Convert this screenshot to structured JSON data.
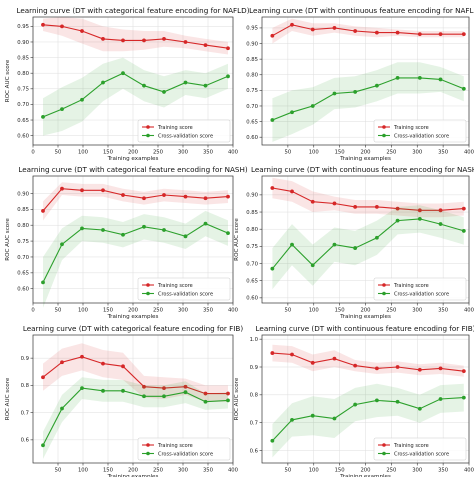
{
  "chart_data": [
    {
      "type": "line",
      "title": "Learning curve (DT with categorical feature encoding for NAFLD)",
      "xlabel": "Training examples",
      "ylabel": "ROC AUC score",
      "xlim": [
        0,
        400
      ],
      "ylim": [
        0.57,
        0.98
      ],
      "xticks": [
        0,
        50,
        100,
        150,
        200,
        250,
        300,
        350,
        400
      ],
      "yticks": [
        0.6,
        0.65,
        0.7,
        0.75,
        0.8,
        0.85,
        0.9,
        0.95
      ],
      "ytick_labels": [
        "0.60",
        "0.65",
        "0.70",
        "0.75",
        "0.80",
        "0.85",
        "0.90",
        "0.95"
      ],
      "x": [
        20,
        58,
        98,
        140,
        180,
        222,
        262,
        305,
        345,
        390
      ],
      "series": [
        {
          "name": "Training score",
          "color": "#d62728",
          "values": [
            0.955,
            0.95,
            0.935,
            0.91,
            0.905,
            0.905,
            0.91,
            0.9,
            0.89,
            0.88
          ],
          "band": [
            0.02,
            0.03,
            0.04,
            0.04,
            0.035,
            0.03,
            0.025,
            0.02,
            0.02,
            0.02
          ]
        },
        {
          "name": "Cross-validation score",
          "color": "#2ca02c",
          "values": [
            0.66,
            0.685,
            0.715,
            0.77,
            0.8,
            0.76,
            0.74,
            0.77,
            0.76,
            0.79
          ],
          "band": [
            0.06,
            0.07,
            0.07,
            0.06,
            0.05,
            0.05,
            0.05,
            0.04,
            0.04,
            0.04
          ]
        }
      ],
      "legend": "bottom-right"
    },
    {
      "type": "line",
      "title": "Learning curve (DT with continuous feature encoding for NAFLD)",
      "xlabel": "Training examples",
      "ylabel": "",
      "xlim": [
        0,
        400
      ],
      "ylim": [
        0.575,
        0.985
      ],
      "xticks": [
        50,
        100,
        150,
        200,
        250,
        300,
        350,
        400
      ],
      "yticks": [
        0.6,
        0.65,
        0.7,
        0.75,
        0.8,
        0.85,
        0.9,
        0.95
      ],
      "ytick_labels": [
        "0.60",
        "0.65",
        "0.70",
        "0.75",
        "0.80",
        "0.85",
        "0.90",
        "0.95"
      ],
      "x": [
        20,
        58,
        98,
        140,
        180,
        222,
        262,
        305,
        345,
        390
      ],
      "series": [
        {
          "name": "Training score",
          "color": "#d62728",
          "values": [
            0.925,
            0.96,
            0.945,
            0.95,
            0.94,
            0.935,
            0.935,
            0.93,
            0.93,
            0.93
          ],
          "band": [
            0.025,
            0.02,
            0.02,
            0.015,
            0.015,
            0.015,
            0.01,
            0.01,
            0.01,
            0.01
          ]
        },
        {
          "name": "Cross-validation score",
          "color": "#2ca02c",
          "values": [
            0.655,
            0.68,
            0.7,
            0.74,
            0.745,
            0.765,
            0.79,
            0.79,
            0.785,
            0.755
          ],
          "band": [
            0.07,
            0.07,
            0.06,
            0.05,
            0.05,
            0.05,
            0.05,
            0.05,
            0.04,
            0.04
          ]
        }
      ],
      "legend": "bottom-right"
    },
    {
      "type": "line",
      "title": "Learning curve (DT with categorical feature encoding for NASH)",
      "xlabel": "Training examples",
      "ylabel": "ROC AUC score",
      "xlim": [
        0,
        400
      ],
      "ylim": [
        0.555,
        0.955
      ],
      "xticks": [
        0,
        50,
        100,
        150,
        200,
        250,
        300,
        350,
        400
      ],
      "yticks": [
        0.6,
        0.65,
        0.7,
        0.75,
        0.8,
        0.85,
        0.9
      ],
      "ytick_labels": [
        "0.60",
        "0.65",
        "0.70",
        "0.75",
        "0.80",
        "0.85",
        "0.90"
      ],
      "x": [
        20,
        58,
        98,
        140,
        180,
        222,
        262,
        305,
        345,
        390
      ],
      "series": [
        {
          "name": "Training score",
          "color": "#d62728",
          "values": [
            0.845,
            0.915,
            0.91,
            0.91,
            0.895,
            0.885,
            0.895,
            0.89,
            0.885,
            0.89
          ],
          "band": [
            0.03,
            0.02,
            0.02,
            0.02,
            0.02,
            0.02,
            0.02,
            0.02,
            0.02,
            0.02
          ]
        },
        {
          "name": "Cross-validation score",
          "color": "#2ca02c",
          "values": [
            0.62,
            0.74,
            0.79,
            0.785,
            0.77,
            0.795,
            0.785,
            0.765,
            0.805,
            0.775
          ],
          "band": [
            0.08,
            0.05,
            0.04,
            0.04,
            0.04,
            0.04,
            0.04,
            0.04,
            0.04,
            0.04
          ]
        }
      ],
      "legend": "bottom-right"
    },
    {
      "type": "line",
      "title": "Learning curve (DT with continuous feature encoding for NASH)",
      "xlabel": "Training examples",
      "ylabel": "ROC AUC score",
      "xlim": [
        0,
        400
      ],
      "ylim": [
        0.585,
        0.955
      ],
      "xticks": [
        50,
        100,
        150,
        200,
        250,
        300,
        350,
        400
      ],
      "yticks": [
        0.6,
        0.65,
        0.7,
        0.75,
        0.8,
        0.85,
        0.9
      ],
      "ytick_labels": [
        "0.60",
        "0.65",
        "0.70",
        "0.75",
        "0.80",
        "0.85",
        "0.90"
      ],
      "x": [
        20,
        58,
        98,
        140,
        180,
        222,
        262,
        305,
        345,
        390
      ],
      "series": [
        {
          "name": "Training score",
          "color": "#d62728",
          "values": [
            0.92,
            0.91,
            0.88,
            0.875,
            0.865,
            0.865,
            0.86,
            0.855,
            0.855,
            0.86
          ],
          "band": [
            0.03,
            0.03,
            0.03,
            0.02,
            0.02,
            0.02,
            0.02,
            0.02,
            0.02,
            0.02
          ]
        },
        {
          "name": "Cross-validation score",
          "color": "#2ca02c",
          "values": [
            0.685,
            0.755,
            0.695,
            0.755,
            0.745,
            0.775,
            0.825,
            0.83,
            0.815,
            0.795
          ],
          "band": [
            0.06,
            0.06,
            0.06,
            0.05,
            0.05,
            0.05,
            0.04,
            0.04,
            0.04,
            0.04
          ]
        }
      ],
      "legend": "bottom-right"
    },
    {
      "type": "line",
      "title": "Learning curve (DT with categorical feature encoding for FIB)",
      "xlabel": "Training examples",
      "ylabel": "ROC AUC score",
      "xlim": [
        0,
        400
      ],
      "ylim": [
        0.515,
        0.985
      ],
      "xticks": [
        50,
        100,
        150,
        200,
        250,
        300,
        350,
        400
      ],
      "yticks": [
        0.6,
        0.7,
        0.8,
        0.9
      ],
      "ytick_labels": [
        "0.6",
        "0.7",
        "0.8",
        "0.9"
      ],
      "x": [
        20,
        58,
        98,
        140,
        180,
        222,
        262,
        305,
        345,
        390
      ],
      "series": [
        {
          "name": "Training score",
          "color": "#d62728",
          "values": [
            0.83,
            0.885,
            0.905,
            0.88,
            0.87,
            0.795,
            0.79,
            0.795,
            0.77,
            0.77
          ],
          "band": [
            0.05,
            0.05,
            0.05,
            0.05,
            0.05,
            0.04,
            0.04,
            0.03,
            0.03,
            0.03
          ]
        },
        {
          "name": "Cross-validation score",
          "color": "#2ca02c",
          "values": [
            0.58,
            0.715,
            0.79,
            0.78,
            0.78,
            0.76,
            0.76,
            0.775,
            0.74,
            0.745
          ],
          "band": [
            0.05,
            0.05,
            0.04,
            0.04,
            0.04,
            0.04,
            0.04,
            0.04,
            0.03,
            0.03
          ]
        }
      ],
      "legend": "bottom-right"
    },
    {
      "type": "line",
      "title": "Learning curve (DT with continuous feature encoding for FIB)",
      "xlabel": "Training examples",
      "ylabel": "ROC AUC score",
      "xlim": [
        0,
        400
      ],
      "ylim": [
        0.555,
        1.015
      ],
      "xticks": [
        50,
        100,
        150,
        200,
        250,
        300,
        350,
        400
      ],
      "yticks": [
        0.6,
        0.7,
        0.8,
        0.9,
        1.0
      ],
      "ytick_labels": [
        "0.6",
        "0.7",
        "0.8",
        "0.9",
        "1.0"
      ],
      "x": [
        20,
        58,
        98,
        140,
        180,
        222,
        262,
        305,
        345,
        390
      ],
      "series": [
        {
          "name": "Training score",
          "color": "#d62728",
          "values": [
            0.95,
            0.945,
            0.915,
            0.93,
            0.905,
            0.895,
            0.9,
            0.89,
            0.895,
            0.885
          ],
          "band": [
            0.03,
            0.03,
            0.03,
            0.03,
            0.02,
            0.02,
            0.02,
            0.02,
            0.02,
            0.02
          ]
        },
        {
          "name": "Cross-validation score",
          "color": "#2ca02c",
          "values": [
            0.635,
            0.71,
            0.725,
            0.715,
            0.765,
            0.78,
            0.775,
            0.75,
            0.785,
            0.79
          ],
          "band": [
            0.06,
            0.06,
            0.07,
            0.07,
            0.06,
            0.06,
            0.05,
            0.05,
            0.05,
            0.05
          ]
        }
      ],
      "legend": "bottom-right"
    }
  ]
}
